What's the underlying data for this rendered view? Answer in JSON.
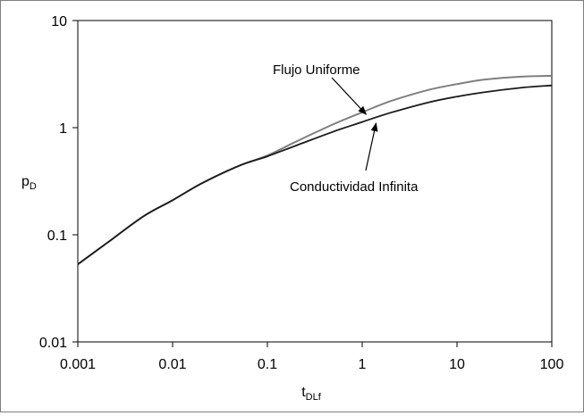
{
  "chart_data": {
    "type": "line",
    "title": "",
    "xlabel": "t",
    "xlabel_sub": "DLf",
    "ylabel": "p",
    "ylabel_sub": "D",
    "x_scale": "log",
    "y_scale": "log",
    "xlim": [
      0.001,
      100
    ],
    "ylim": [
      0.01,
      10
    ],
    "grid": false,
    "legend": "none",
    "x_ticks": [
      {
        "value": 0.001,
        "label": "0.001"
      },
      {
        "value": 0.01,
        "label": "0.01"
      },
      {
        "value": 0.1,
        "label": "0.1"
      },
      {
        "value": 1,
        "label": "1"
      },
      {
        "value": 10,
        "label": "10"
      },
      {
        "value": 100,
        "label": "100"
      }
    ],
    "y_ticks": [
      {
        "value": 0.01,
        "label": "0.01"
      },
      {
        "value": 0.1,
        "label": "0.1"
      },
      {
        "value": 1,
        "label": "1"
      },
      {
        "value": 10,
        "label": "10"
      }
    ],
    "series": [
      {
        "name": "Flujo Uniforme",
        "color": "#7f7f7f",
        "x": [
          0.001,
          0.002,
          0.005,
          0.01,
          0.02,
          0.05,
          0.1,
          0.2,
          0.5,
          1,
          2,
          5,
          10,
          20,
          50,
          100
        ],
        "y": [
          0.053,
          0.083,
          0.15,
          0.21,
          0.3,
          0.44,
          0.55,
          0.74,
          1.08,
          1.39,
          1.77,
          2.25,
          2.55,
          2.82,
          3.0,
          3.05
        ]
      },
      {
        "name": "Conductividad Infinita",
        "color": "#1a1a1a",
        "x": [
          0.001,
          0.002,
          0.005,
          0.01,
          0.02,
          0.05,
          0.1,
          0.2,
          0.5,
          1,
          2,
          5,
          10,
          20,
          50,
          100
        ],
        "y": [
          0.053,
          0.083,
          0.15,
          0.21,
          0.3,
          0.44,
          0.54,
          0.68,
          0.92,
          1.13,
          1.38,
          1.72,
          1.95,
          2.15,
          2.37,
          2.48
        ]
      }
    ],
    "annotations": [
      {
        "text": "Flujo Uniforme",
        "series": 0,
        "arrow_to": {
          "x": 1.1,
          "y": 1.33
        }
      },
      {
        "text": "Conductividad Infinita",
        "series": 1,
        "arrow_to": {
          "x": 1.4,
          "y": 1.1
        }
      }
    ]
  }
}
